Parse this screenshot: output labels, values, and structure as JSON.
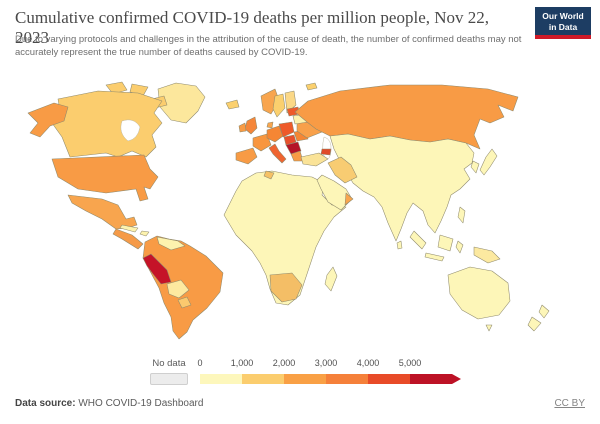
{
  "header": {
    "title": "Cumulative confirmed COVID-19 deaths per million people, Nov 22, 2023",
    "subtitle": "Due to varying protocols and challenges in the attribution of the cause of death, the number of confirmed deaths may not accurately represent the true number of deaths caused by COVID-19.",
    "logo": {
      "line1": "Our World",
      "line2": "in Data",
      "bg_color": "#1d3d63",
      "accent_color": "#cf1a28"
    }
  },
  "legend": {
    "no_data_label": "No data",
    "no_data_color": "#ececec",
    "tick_labels": [
      "0",
      "1,000",
      "2,000",
      "3,000",
      "4,000",
      "5,000"
    ],
    "bin_colors": [
      "#fdf7bc",
      "#fbcd6e",
      "#f9a045",
      "#f5803a",
      "#e84b28",
      "#bd1226"
    ]
  },
  "footer": {
    "source_label": "Data source:",
    "source_value": " WHO COVID-19 Dashboard",
    "license": "CC BY"
  },
  "map": {
    "region_colors": {
      "greenland": "#fce79c",
      "canada": "#fbcd6e",
      "arctic-islands": "#fbcd6e",
      "alaska": "#f89b45",
      "usa": "#f89b45",
      "mexico": "#f8a54e",
      "central-america": "#f59a48",
      "cuba": "#fdf3ae",
      "hispaniola": "#fdf3ae",
      "south-america": "#f89b45",
      "venezuela": "#fdf3ae",
      "peru": "#c51328",
      "bolivia": "#fde9a0",
      "paraguay": "#fbc96e",
      "africa": "#fdf6b8",
      "southern-africa": "#f4be66",
      "tunisia": "#f6c165",
      "madagascar": "#fdf6b8",
      "iberia": "#f89b45",
      "france": "#f8963f",
      "uk": "#f5863a",
      "ireland": "#f89b45",
      "iceland": "#fbd06e",
      "norway": "#f8a54e",
      "sweden": "#fbd06e",
      "finland": "#fbd887",
      "denmark": "#f8a54e",
      "germany": "#f58634",
      "central-europe": "#ee5a2a",
      "italy": "#ef6430",
      "hungary": "#e8502c",
      "balkans": "#b51427",
      "romania": "#f58634",
      "greece": "#f89b45",
      "ukraine": "#f8a04a",
      "belarus": "#fdf3ae",
      "baltics": "#ee5a2a",
      "turkey": "#fae398",
      "caucasus": "#e04a28",
      "russia": "#f89b45",
      "svalbard": "#fbd06e",
      "asia": "#fdf6b8",
      "iran": "#f8cc72",
      "arabia": "#fdf6b8",
      "oman": "#f8a54e",
      "japan": "#fdf6b8",
      "korea": "#fdf6b8",
      "sri-lanka": "#fdf6b8",
      "philippines": "#fdf6b8",
      "borneo": "#fdf6b8",
      "sumatra": "#fdf6b8",
      "java": "#fdf6b8",
      "sulawesi": "#fdf6b8",
      "new-guinea": "#fce9a0",
      "australia": "#fdf6b8",
      "tasmania": "#fdf6b8",
      "new-zealand": "#fdf6b8"
    }
  },
  "chart_data": {
    "type": "choropleth_map",
    "title": "Cumulative confirmed COVID-19 deaths per million people",
    "date": "Nov 22, 2023",
    "unit": "deaths per million people",
    "scale": {
      "bins": [
        "0–1,000",
        "1,000–2,000",
        "2,000–3,000",
        "3,000–4,000",
        "4,000–5,000",
        "5,000+"
      ],
      "bin_colors": [
        "#fdf7bc",
        "#fbcd6e",
        "#f9a045",
        "#f5803a",
        "#e84b28",
        "#bd1226"
      ],
      "no_data_color": "#ececec",
      "legend_position": "bottom"
    },
    "regions": [
      {
        "name": "United States",
        "bin": "3,000–4,000"
      },
      {
        "name": "Canada",
        "bin": "1,000–2,000"
      },
      {
        "name": "Greenland",
        "bin": "0–1,000"
      },
      {
        "name": "Mexico",
        "bin": "2,000–3,000"
      },
      {
        "name": "Peru",
        "bin": "5,000+"
      },
      {
        "name": "Brazil",
        "bin": "2,000–3,000"
      },
      {
        "name": "Argentina",
        "bin": "2,000–3,000"
      },
      {
        "name": "Chile",
        "bin": "2,000–3,000"
      },
      {
        "name": "Colombia",
        "bin": "2,000–3,000"
      },
      {
        "name": "Venezuela",
        "bin": "0–1,000"
      },
      {
        "name": "Bolivia",
        "bin": "0–1,000"
      },
      {
        "name": "United Kingdom",
        "bin": "3,000–4,000"
      },
      {
        "name": "France",
        "bin": "2,000–3,000"
      },
      {
        "name": "Spain and Portugal",
        "bin": "2,000–3,000"
      },
      {
        "name": "Italy",
        "bin": "3,000–4,000"
      },
      {
        "name": "Germany",
        "bin": "3,000–4,000"
      },
      {
        "name": "Poland, Czechia, Slovakia",
        "bin": "4,000–5,000"
      },
      {
        "name": "Hungary, Croatia",
        "bin": "4,000–5,000"
      },
      {
        "name": "Bulgaria and Western Balkans",
        "bin": "5,000+"
      },
      {
        "name": "Romania",
        "bin": "3,000–4,000"
      },
      {
        "name": "Ukraine",
        "bin": "2,000–3,000"
      },
      {
        "name": "Belarus",
        "bin": "0–1,000"
      },
      {
        "name": "Baltic states",
        "bin": "4,000–5,000"
      },
      {
        "name": "Sweden",
        "bin": "1,000–2,000"
      },
      {
        "name": "Norway",
        "bin": "2,000–3,000"
      },
      {
        "name": "Finland",
        "bin": "1,000–2,000"
      },
      {
        "name": "Iceland",
        "bin": "1,000–2,000"
      },
      {
        "name": "Russia",
        "bin": "2,000–3,000"
      },
      {
        "name": "Turkey",
        "bin": "1,000–2,000"
      },
      {
        "name": "Georgia and Armenia",
        "bin": "4,000–5,000"
      },
      {
        "name": "Iran",
        "bin": "1,000–2,000"
      },
      {
        "name": "South Africa",
        "bin": "1,000–2,000"
      },
      {
        "name": "Tunisia",
        "bin": "1,000–2,000"
      },
      {
        "name": "China",
        "bin": "0–1,000"
      },
      {
        "name": "India",
        "bin": "0–1,000"
      },
      {
        "name": "Most of Africa",
        "bin": "0–1,000"
      },
      {
        "name": "Southeast Asia",
        "bin": "0–1,000"
      },
      {
        "name": "Japan and South Korea",
        "bin": "0–1,000"
      },
      {
        "name": "Australia and New Zealand",
        "bin": "0–1,000"
      }
    ]
  }
}
